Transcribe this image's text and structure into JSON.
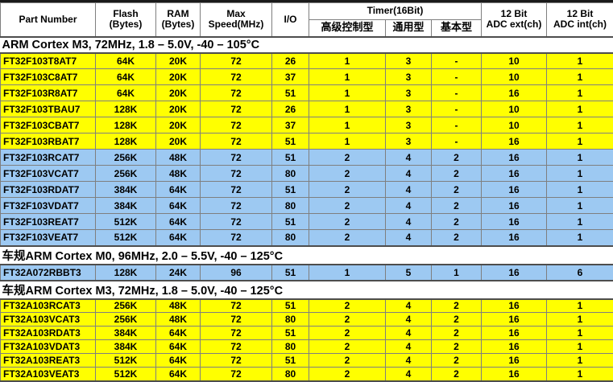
{
  "colors": {
    "yellow_row": "#FFFF00",
    "blue_row": "#9DC9F2",
    "grid_border": "#7F7F7F",
    "section_border": "#4D4D4D",
    "text": "#000000",
    "top_bar": "#1A1A1A"
  },
  "table": {
    "header": {
      "part_number": "Part Number",
      "flash": "Flash\n(Bytes)",
      "ram": "RAM\n(Bytes)",
      "max_speed": "Max\nSpeed(MHz)",
      "io": "I/O",
      "timer_group": "Timer(16Bit)",
      "timer_advanced": "高级控制型",
      "timer_general": "通用型",
      "timer_basic": "基本型",
      "adc_ext": "12 Bit\nADC ext(ch)",
      "adc_int": "12 Bit\nADC int(ch)"
    },
    "sections": [
      {
        "title": "ARM Cortex M3, 72MHz, 1.8 – 5.0V, -40 – 105°C",
        "compact": false,
        "rows": [
          {
            "color": "yellow",
            "cells": [
              "FT32F103T8AT7",
              "64K",
              "20K",
              "72",
              "26",
              "1",
              "3",
              "-",
              "10",
              "1"
            ]
          },
          {
            "color": "yellow",
            "cells": [
              "FT32F103C8AT7",
              "64K",
              "20K",
              "72",
              "37",
              "1",
              "3",
              "-",
              "10",
              "1"
            ]
          },
          {
            "color": "yellow",
            "cells": [
              "FT32F103R8AT7",
              "64K",
              "20K",
              "72",
              "51",
              "1",
              "3",
              "-",
              "16",
              "1"
            ]
          },
          {
            "color": "yellow",
            "cells": [
              "FT32F103TBAU7",
              "128K",
              "20K",
              "72",
              "26",
              "1",
              "3",
              "-",
              "10",
              "1"
            ]
          },
          {
            "color": "yellow",
            "cells": [
              "FT32F103CBAT7",
              "128K",
              "20K",
              "72",
              "37",
              "1",
              "3",
              "-",
              "10",
              "1"
            ]
          },
          {
            "color": "yellow",
            "cells": [
              "FT32F103RBAT7",
              "128K",
              "20K",
              "72",
              "51",
              "1",
              "3",
              "-",
              "16",
              "1"
            ]
          },
          {
            "color": "blue",
            "cells": [
              "FT32F103RCAT7",
              "256K",
              "48K",
              "72",
              "51",
              "2",
              "4",
              "2",
              "16",
              "1"
            ]
          },
          {
            "color": "blue",
            "cells": [
              "FT32F103VCAT7",
              "256K",
              "48K",
              "72",
              "80",
              "2",
              "4",
              "2",
              "16",
              "1"
            ]
          },
          {
            "color": "blue",
            "cells": [
              "FT32F103RDAT7",
              "384K",
              "64K",
              "72",
              "51",
              "2",
              "4",
              "2",
              "16",
              "1"
            ]
          },
          {
            "color": "blue",
            "cells": [
              "FT32F103VDAT7",
              "384K",
              "64K",
              "72",
              "80",
              "2",
              "4",
              "2",
              "16",
              "1"
            ]
          },
          {
            "color": "blue",
            "cells": [
              "FT32F103REAT7",
              "512K",
              "64K",
              "72",
              "51",
              "2",
              "4",
              "2",
              "16",
              "1"
            ]
          },
          {
            "color": "blue",
            "cells": [
              "FT32F103VEAT7",
              "512K",
              "64K",
              "72",
              "80",
              "2",
              "4",
              "2",
              "16",
              "1"
            ]
          }
        ]
      },
      {
        "title": "车规ARM Cortex M0, 96MHz, 2.0 – 5.5V, -40 – 125°C",
        "compact": false,
        "rows": [
          {
            "color": "blue",
            "cells": [
              "FT32A072RBBT3",
              "128K",
              "24K",
              "96",
              "51",
              "1",
              "5",
              "1",
              "16",
              "6"
            ]
          }
        ]
      },
      {
        "title": "车规ARM Cortex M3, 72MHz, 1.8 – 5.0V, -40 – 125°C",
        "compact": true,
        "rows": [
          {
            "color": "yellow",
            "cells": [
              "FT32A103RCAT3",
              "256K",
              "48K",
              "72",
              "51",
              "2",
              "4",
              "2",
              "16",
              "1"
            ]
          },
          {
            "color": "yellow",
            "cells": [
              "FT32A103VCAT3",
              "256K",
              "48K",
              "72",
              "80",
              "2",
              "4",
              "2",
              "16",
              "1"
            ]
          },
          {
            "color": "yellow",
            "cells": [
              "FT32A103RDAT3",
              "384K",
              "64K",
              "72",
              "51",
              "2",
              "4",
              "2",
              "16",
              "1"
            ]
          },
          {
            "color": "yellow",
            "cells": [
              "FT32A103VDAT3",
              "384K",
              "64K",
              "72",
              "80",
              "2",
              "4",
              "2",
              "16",
              "1"
            ]
          },
          {
            "color": "yellow",
            "cells": [
              "FT32A103REAT3",
              "512K",
              "64K",
              "72",
              "51",
              "2",
              "4",
              "2",
              "16",
              "1"
            ]
          },
          {
            "color": "yellow",
            "cells": [
              "FT32A103VEAT3",
              "512K",
              "64K",
              "72",
              "80",
              "2",
              "4",
              "2",
              "16",
              "1"
            ]
          }
        ]
      }
    ]
  }
}
